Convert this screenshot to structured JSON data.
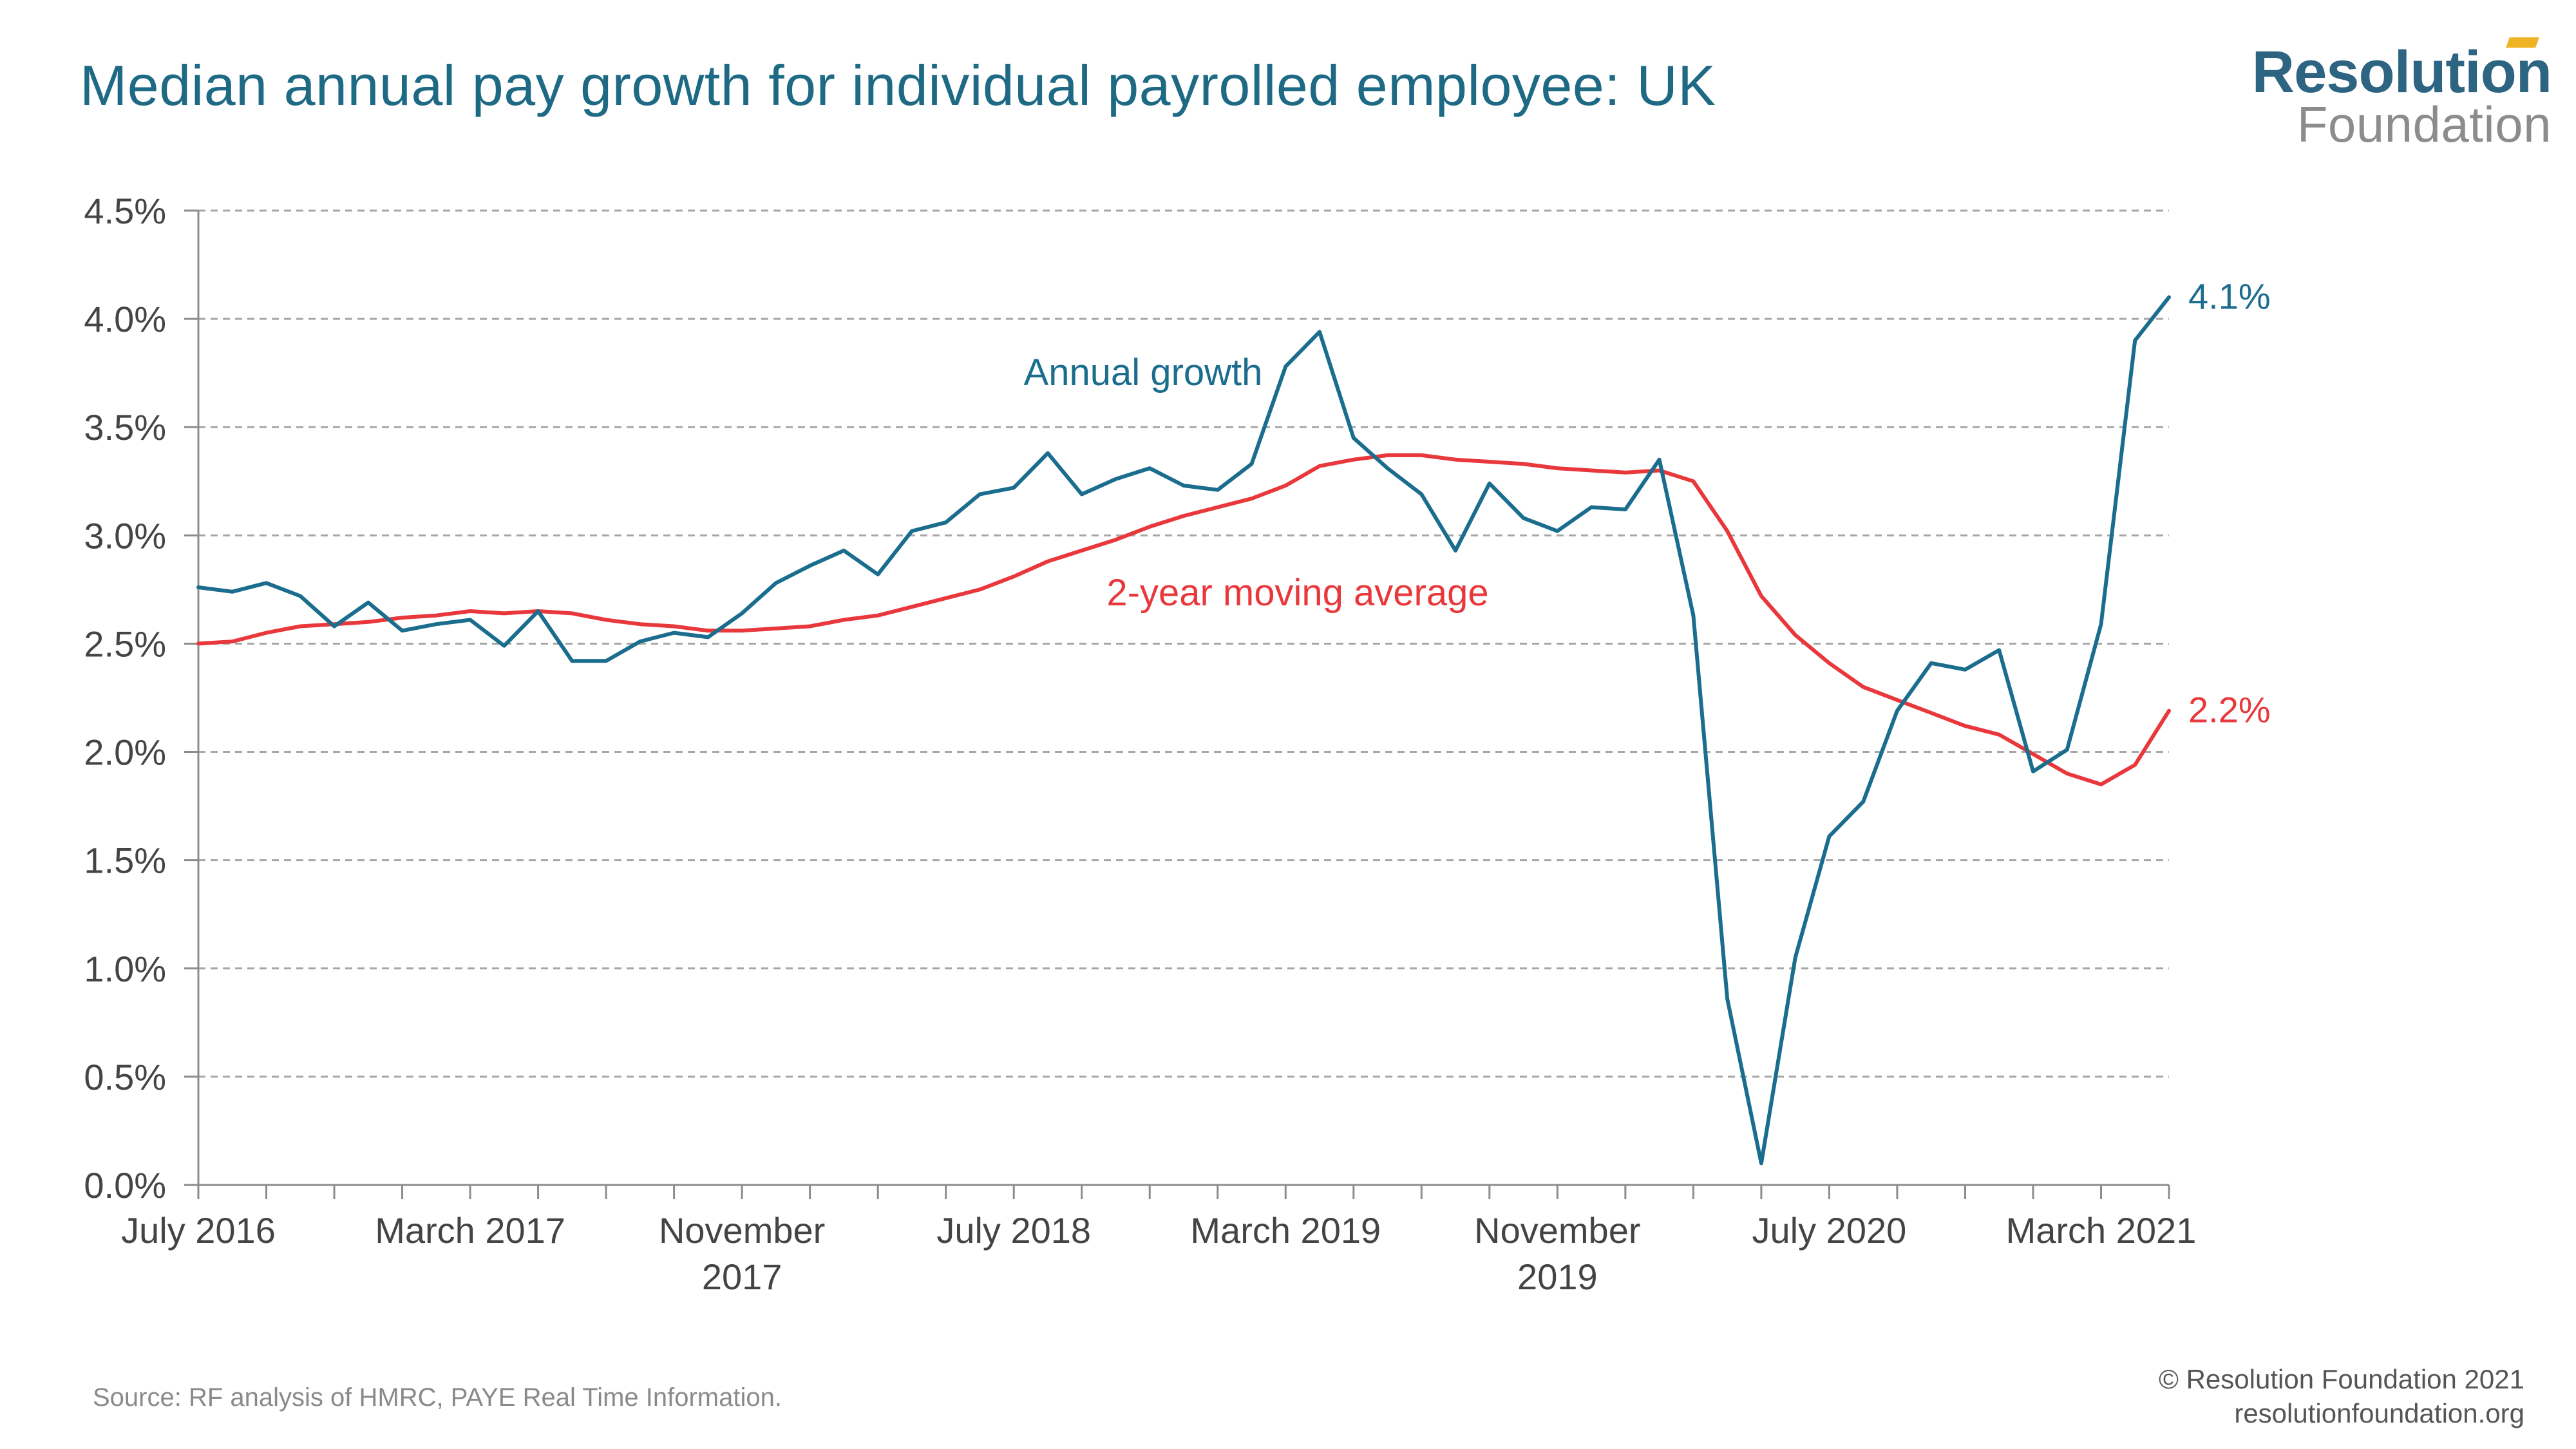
{
  "title": "Median annual pay growth for individual payrolled employee: UK",
  "logo": {
    "line1": "Resolution",
    "line2": "Foundation"
  },
  "footer": {
    "source": "Source: RF analysis of HMRC, PAYE Real Time Information.",
    "copyright": "© Resolution Foundation 2021",
    "website": "resolutionfoundation.org"
  },
  "colors": {
    "title": "#1e6a85",
    "annual_growth": "#1b6d8e",
    "moving_average": "#e8383c",
    "grid": "#a6a6a6",
    "axis": "#8c8c8c",
    "tick_label": "#444444",
    "logo_accent": "#f0b323"
  },
  "chart_data": {
    "type": "line",
    "title": "Median annual pay growth for individual payrolled employee: UK",
    "x": [
      "2016-07",
      "2016-08",
      "2016-09",
      "2016-10",
      "2016-11",
      "2016-12",
      "2017-01",
      "2017-02",
      "2017-03",
      "2017-04",
      "2017-05",
      "2017-06",
      "2017-07",
      "2017-08",
      "2017-09",
      "2017-10",
      "2017-11",
      "2017-12",
      "2018-01",
      "2018-02",
      "2018-03",
      "2018-04",
      "2018-05",
      "2018-06",
      "2018-07",
      "2018-08",
      "2018-09",
      "2018-10",
      "2018-11",
      "2018-12",
      "2019-01",
      "2019-02",
      "2019-03",
      "2019-04",
      "2019-05",
      "2019-06",
      "2019-07",
      "2019-08",
      "2019-09",
      "2019-10",
      "2019-11",
      "2019-12",
      "2020-01",
      "2020-02",
      "2020-03",
      "2020-04",
      "2020-05",
      "2020-06",
      "2020-07",
      "2020-08",
      "2020-09",
      "2020-10",
      "2020-11",
      "2020-12",
      "2021-01",
      "2021-02",
      "2021-03",
      "2021-04",
      "2021-05"
    ],
    "xticks": [
      {
        "x": "2016-07",
        "label": [
          "July 2016"
        ]
      },
      {
        "x": "2017-03",
        "label": [
          "March 2017"
        ]
      },
      {
        "x": "2017-11",
        "label": [
          "November",
          "2017"
        ]
      },
      {
        "x": "2018-07",
        "label": [
          "July 2018"
        ]
      },
      {
        "x": "2019-03",
        "label": [
          "March 2019"
        ]
      },
      {
        "x": "2019-11",
        "label": [
          "November",
          "2019"
        ]
      },
      {
        "x": "2020-07",
        "label": [
          "July 2020"
        ]
      },
      {
        "x": "2021-03",
        "label": [
          "March 2021"
        ]
      }
    ],
    "yticks": [
      "0.0%",
      "0.5%",
      "1.0%",
      "1.5%",
      "2.0%",
      "2.5%",
      "3.0%",
      "3.5%",
      "4.0%",
      "4.5%"
    ],
    "ylim": [
      0,
      4.5
    ],
    "grid": true,
    "series": [
      {
        "name": "Annual growth",
        "color": "#1b6d8e",
        "end_label": "4.1%",
        "values": [
          2.76,
          2.74,
          2.78,
          2.72,
          2.58,
          2.69,
          2.56,
          2.59,
          2.61,
          2.49,
          2.65,
          2.42,
          2.42,
          2.51,
          2.55,
          2.53,
          2.64,
          2.78,
          2.86,
          2.93,
          2.82,
          3.02,
          3.06,
          3.19,
          3.22,
          3.38,
          3.19,
          3.26,
          3.31,
          3.23,
          3.21,
          3.33,
          3.78,
          3.94,
          3.45,
          3.31,
          3.19,
          2.93,
          3.24,
          3.08,
          3.02,
          3.13,
          3.12,
          3.35,
          2.63,
          0.86,
          0.1,
          1.05,
          1.61,
          1.77,
          2.19,
          2.41,
          2.38,
          2.47,
          1.91,
          2.01,
          2.59,
          3.9,
          4.1
        ]
      },
      {
        "name": "2-year moving average",
        "color": "#e8383c",
        "end_label": "2.2%",
        "values": [
          2.5,
          2.51,
          2.55,
          2.58,
          2.59,
          2.6,
          2.62,
          2.63,
          2.65,
          2.64,
          2.65,
          2.64,
          2.61,
          2.59,
          2.58,
          2.56,
          2.56,
          2.57,
          2.58,
          2.61,
          2.63,
          2.67,
          2.71,
          2.75,
          2.81,
          2.88,
          2.93,
          2.98,
          3.04,
          3.09,
          3.13,
          3.17,
          3.23,
          3.32,
          3.35,
          3.37,
          3.37,
          3.35,
          3.34,
          3.33,
          3.31,
          3.3,
          3.29,
          3.3,
          3.25,
          3.02,
          2.72,
          2.54,
          2.41,
          2.3,
          2.24,
          2.18,
          2.12,
          2.08,
          1.99,
          1.9,
          1.85,
          1.94,
          2.19
        ]
      }
    ],
    "annotations": [
      {
        "text": "Annual growth",
        "series": "Annual growth"
      },
      {
        "text": "2-year moving average",
        "series": "2-year moving average"
      }
    ]
  }
}
